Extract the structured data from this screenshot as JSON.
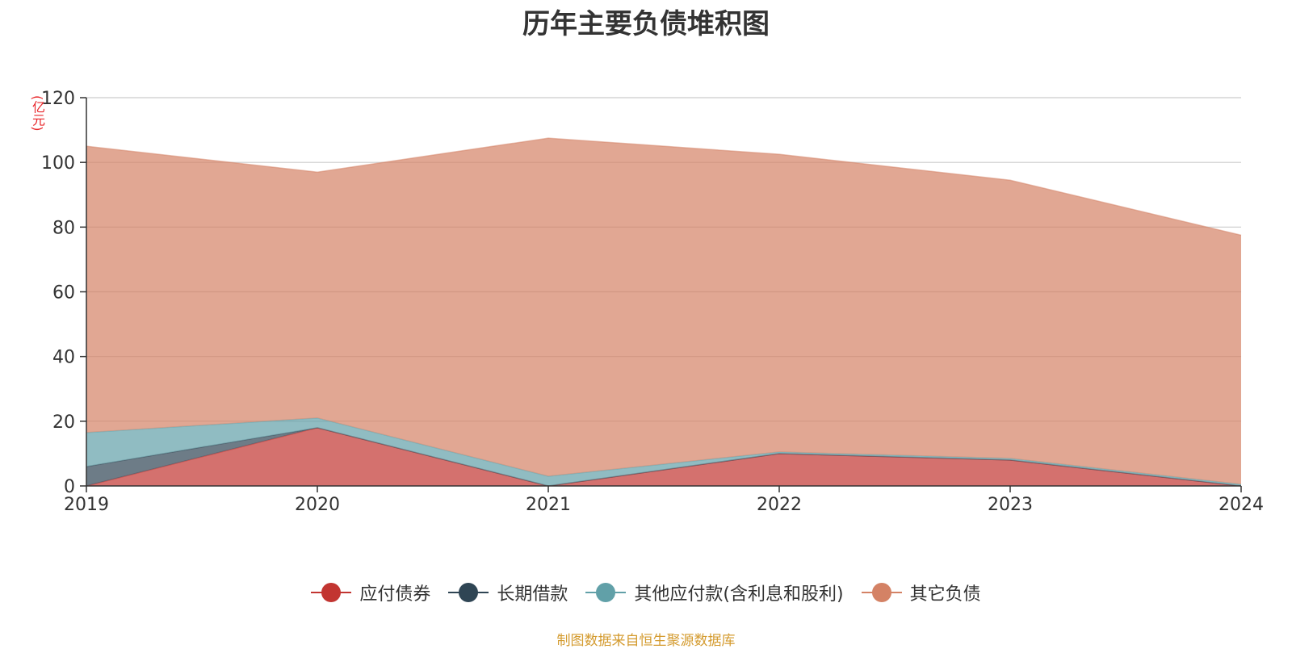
{
  "chart_data": {
    "type": "area",
    "title": "历年主要负债堆积图",
    "unit_label": "(亿元)",
    "x": [
      "2019",
      "2020",
      "2021",
      "2022",
      "2023",
      "2024"
    ],
    "ylim": [
      0,
      120
    ],
    "yticks": [
      0,
      20,
      40,
      60,
      80,
      100,
      120
    ],
    "stacked": true,
    "grid": true,
    "legend_position": "bottom",
    "series": [
      {
        "name": "应付债券",
        "color": "#c23531",
        "values": [
          0,
          18,
          0,
          10,
          8,
          0
        ]
      },
      {
        "name": "长期借款",
        "color": "#2f4554",
        "values": [
          6,
          0,
          0,
          0,
          0,
          0
        ]
      },
      {
        "name": "其他应付款(含利息和股利)",
        "color": "#61a0a8",
        "values": [
          10.5,
          3,
          3,
          0.5,
          0.5,
          0.5
        ]
      },
      {
        "name": "其它负债",
        "color": "#d48265",
        "values": [
          88.5,
          76,
          104.5,
          92,
          86,
          77
        ]
      }
    ]
  },
  "footer": {
    "source": "制图数据来自恒生聚源数据库"
  }
}
